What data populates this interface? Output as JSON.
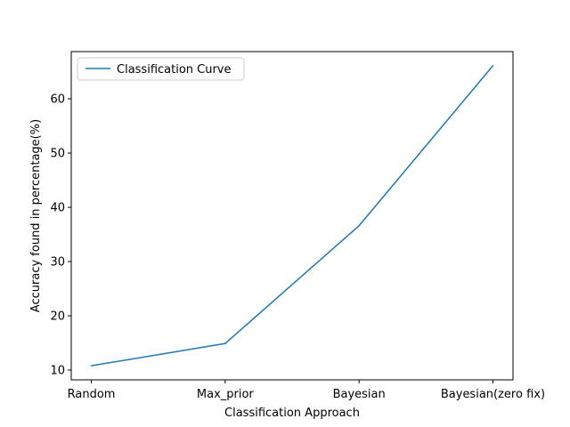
{
  "chart_data": {
    "type": "line",
    "categories": [
      "Random",
      "Max_prior",
      "Bayesian",
      "Bayesian(zero fix)"
    ],
    "series": [
      {
        "name": "Classification Curve",
        "values": [
          10.8,
          14.9,
          36.6,
          66.1
        ],
        "color": "#1f77b4"
      }
    ],
    "xlabel": "Classification Approach",
    "ylabel": "Accuracy found in percentage(%)",
    "ylim": [
      8.2,
      68.7
    ],
    "yticks": [
      10,
      20,
      30,
      40,
      50,
      60
    ],
    "grid": false,
    "legend_position": "upper-left"
  }
}
